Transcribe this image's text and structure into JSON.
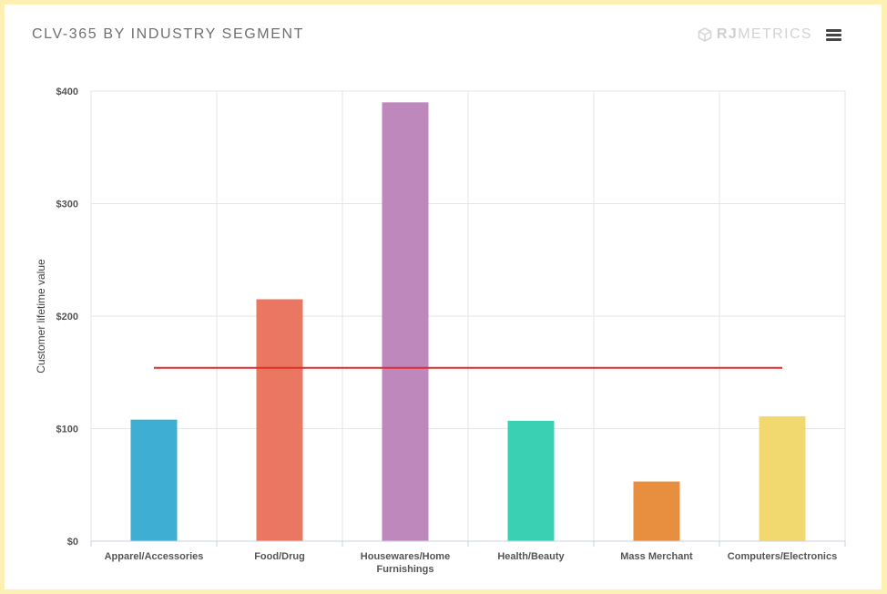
{
  "header": {
    "title": "CLV-365 BY INDUSTRY SEGMENT",
    "brand_bold": "RJ",
    "brand_light": "METRICS"
  },
  "icons": {
    "brand": "cube-logo-icon",
    "menu": "hamburger-menu-icon"
  },
  "chart_data": {
    "type": "bar",
    "title": "CLV-365 BY INDUSTRY SEGMENT",
    "xlabel": "",
    "ylabel": "Customer lifetime value",
    "ylim": [
      0,
      400
    ],
    "yticks": [
      0,
      100,
      200,
      300,
      400
    ],
    "ytick_labels": [
      "$0",
      "$100",
      "$200",
      "$300",
      "$400"
    ],
    "grid": true,
    "categories": [
      [
        "Apparel/Accessories"
      ],
      [
        "Food/Drug"
      ],
      [
        "Housewares/Home",
        "Furnishings"
      ],
      [
        "Health/Beauty"
      ],
      [
        "Mass Merchant"
      ],
      [
        "Computers/Electronics"
      ]
    ],
    "values": [
      108,
      215,
      390,
      107,
      53,
      111
    ],
    "colors": [
      "#3eaed3",
      "#ea7761",
      "#be88bc",
      "#3ad0b4",
      "#e88f3f",
      "#f1d86f"
    ],
    "reference_line": {
      "value": 154,
      "color": "#e22b2b"
    }
  }
}
